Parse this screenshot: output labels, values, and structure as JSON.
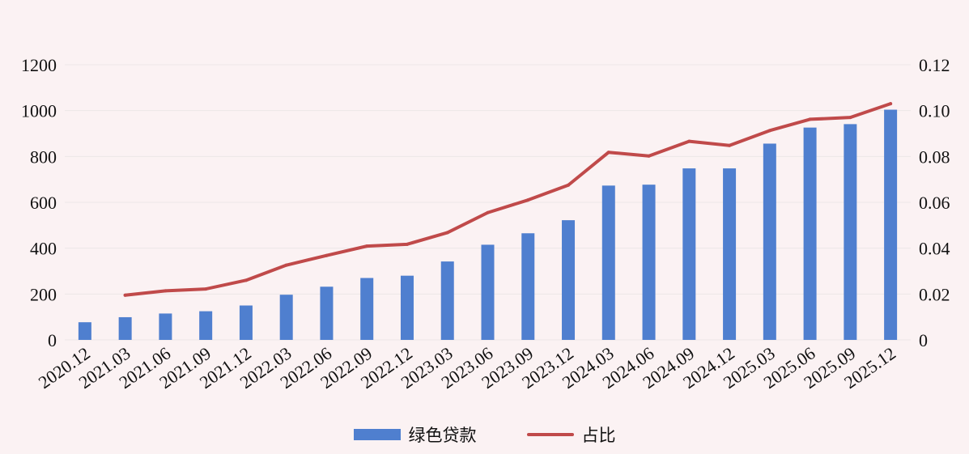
{
  "colors": {
    "bar": "#4f7fcf",
    "line": "#c04a4a",
    "grid": "#ece6e7",
    "background": "#fbf2f3"
  },
  "chart_data": {
    "type": "bar",
    "title": "",
    "xlabel": "",
    "ylabel": "",
    "ylim": [
      0,
      1200
    ],
    "y2lim": [
      0,
      0.12
    ],
    "yticks": [
      "0",
      "200",
      "400",
      "600",
      "800",
      "1000",
      "1200"
    ],
    "y2ticks": [
      "0",
      "0.02",
      "0.04",
      "0.06",
      "0.08",
      "0.10",
      "0.12"
    ],
    "grid": true,
    "legend_position": "bottom-center",
    "categories": [
      "2020.12",
      "2021.03",
      "2021.06",
      "2021.09",
      "2021.12",
      "2022.03",
      "2022.06",
      "2022.09",
      "2022.12",
      "2023.03",
      "2023.06",
      "2023.09",
      "2023.12",
      "2024.03",
      "2024.06",
      "2024.09",
      "2024.12",
      "2025.03",
      "2025.06",
      "2025.09",
      "2025.12"
    ],
    "series": [
      {
        "name": "绿色贷款",
        "type": "bar",
        "axis": "left",
        "values": [
          77,
          99,
          115,
          125,
          150,
          197,
          232,
          270,
          280,
          342,
          415,
          465,
          522,
          673,
          677,
          748,
          748,
          856,
          926,
          941,
          1004
        ]
      },
      {
        "name": "占比",
        "type": "line",
        "axis": "right",
        "values": [
          null,
          0.0195,
          0.0214,
          0.0222,
          0.026,
          0.0326,
          0.0368,
          0.0409,
          0.0417,
          0.0468,
          0.0555,
          0.061,
          0.0675,
          0.0818,
          0.0802,
          0.0866,
          0.0848,
          0.0913,
          0.0962,
          0.097,
          0.103
        ]
      }
    ]
  }
}
